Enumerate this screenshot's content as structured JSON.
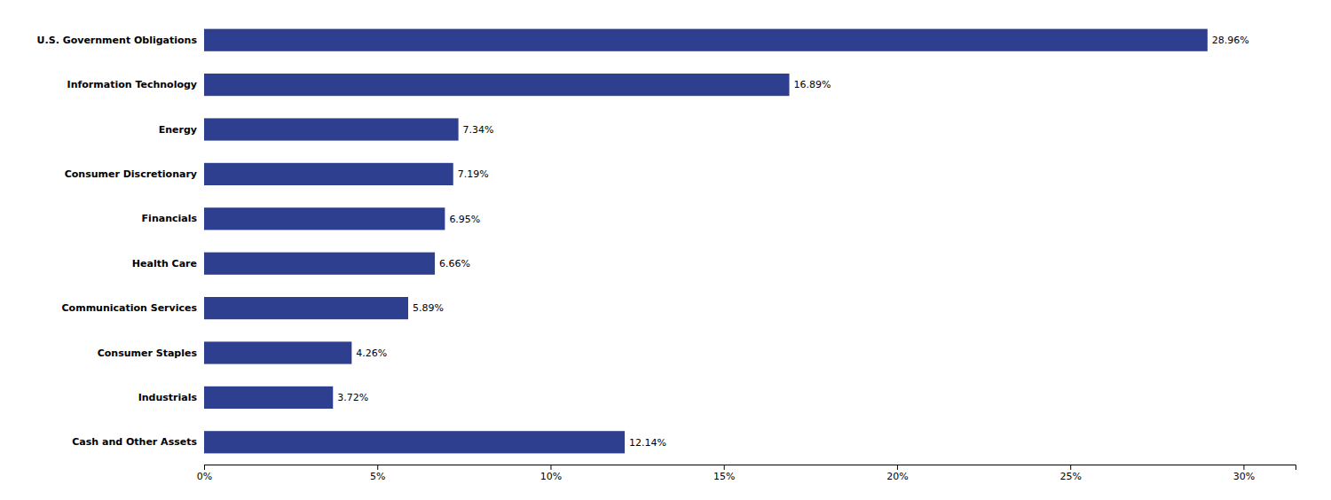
{
  "chart_data": {
    "type": "bar",
    "orientation": "horizontal",
    "categories": [
      "Cash and Other Assets",
      "Industrials",
      "Consumer Staples",
      "Communication Services",
      "Health Care",
      "Financials",
      "Consumer Discretionary",
      "Energy",
      "Information Technology",
      "U.S. Government Obligations"
    ],
    "values": [
      12.14,
      3.72,
      4.26,
      5.89,
      6.66,
      6.95,
      7.19,
      7.34,
      16.89,
      28.96
    ],
    "value_labels": [
      "12.14%",
      "3.72%",
      "4.26%",
      "5.89%",
      "6.66%",
      "6.95%",
      "7.19%",
      "7.34%",
      "16.89%",
      "28.96%"
    ],
    "data_labels": true,
    "color": "#2e3f8f",
    "xlim": [
      0,
      31.5
    ],
    "xticks": [
      {
        "value": 0,
        "label": "0%"
      },
      {
        "value": 5,
        "label": "5%"
      },
      {
        "value": 10,
        "label": "10%"
      },
      {
        "value": 15,
        "label": "15%"
      },
      {
        "value": 20,
        "label": "20%"
      },
      {
        "value": 25,
        "label": "25%"
      },
      {
        "value": 30,
        "label": "30%"
      }
    ],
    "grid": false
  }
}
